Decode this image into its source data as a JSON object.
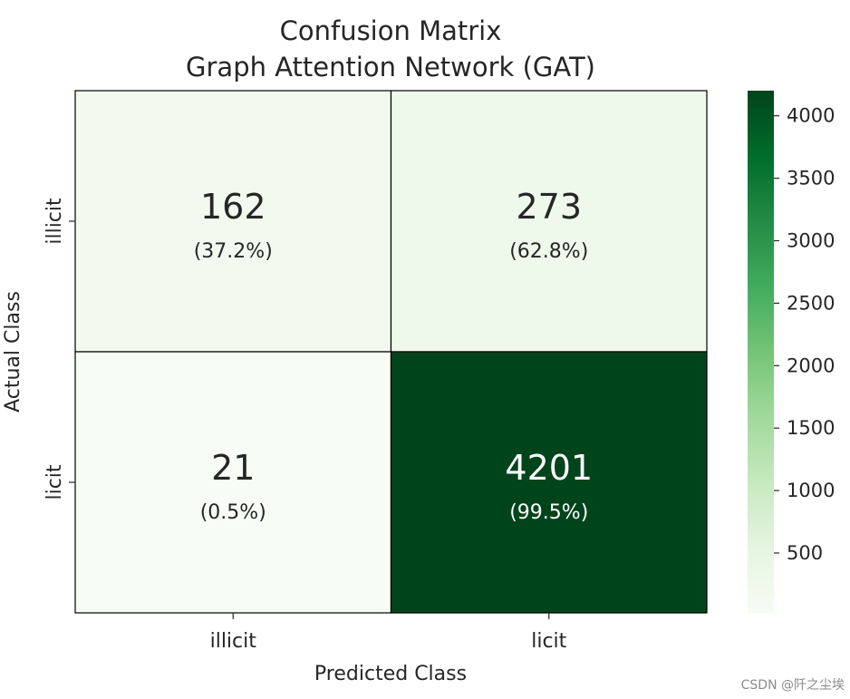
{
  "chart_data": {
    "type": "heatmap",
    "title": "Confusion Matrix",
    "subtitle": "Graph Attention Network (GAT)",
    "xlabel": "Predicted Class",
    "ylabel": "Actual Class",
    "x_categories": [
      "illicit",
      "licit"
    ],
    "y_categories": [
      "illicit",
      "licit"
    ],
    "values": [
      [
        162,
        273
      ],
      [
        21,
        4201
      ]
    ],
    "percent_labels": [
      [
        "(37.2%)",
        "(62.8%)"
      ],
      [
        "(0.5%)",
        "(99.5%)"
      ]
    ],
    "colorbar": {
      "ticks": [
        500,
        1000,
        1500,
        2000,
        2500,
        3000,
        3500,
        4000
      ],
      "range": [
        21,
        4201
      ]
    },
    "colormap": [
      "#f7fcf5",
      "#e5f5e0",
      "#c7e9c0",
      "#a1d99b",
      "#74c476",
      "#41ab5d",
      "#238b45",
      "#006d2c",
      "#00441b"
    ]
  },
  "watermark": "CSDN @阡之尘埃"
}
